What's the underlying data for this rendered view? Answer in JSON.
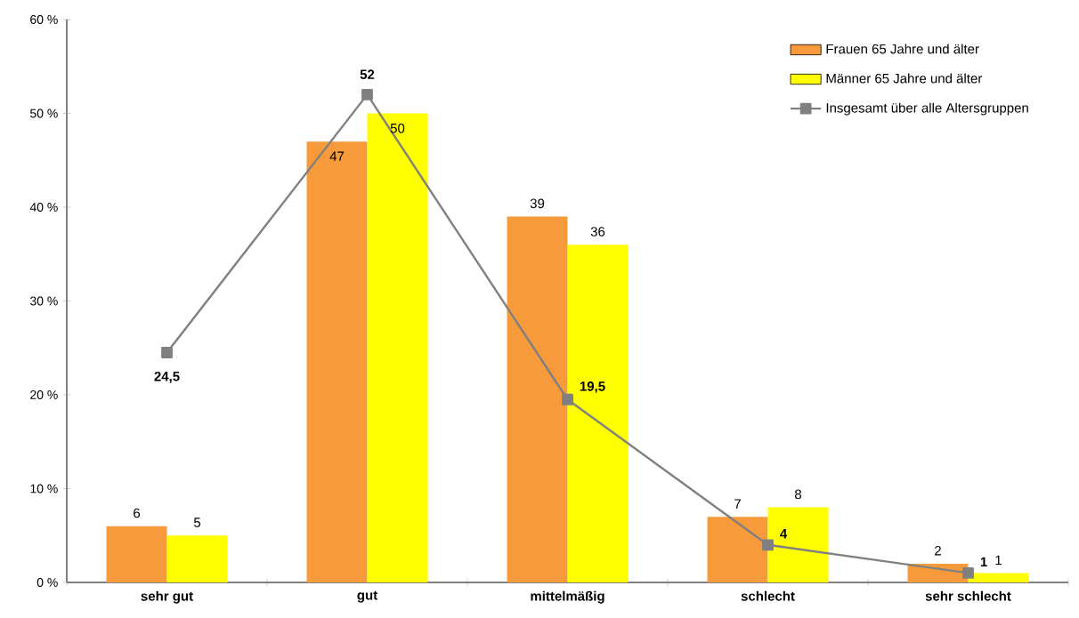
{
  "chart_data": {
    "type": "bar",
    "categories": [
      "sehr gut",
      "gut",
      "mittelmäßig",
      "schlecht",
      "sehr schlecht"
    ],
    "series": [
      {
        "name": "Frauen 65 Jahre und älter",
        "color": "#f79a3b",
        "values": [
          6,
          47,
          39,
          7,
          2
        ],
        "value_labels": [
          "6",
          "47",
          "39",
          "7",
          "2"
        ]
      },
      {
        "name": "Männer 65 Jahre und älter",
        "color": "#ffff00",
        "values": [
          5,
          50,
          36,
          8,
          1
        ],
        "value_labels": [
          "5",
          "50",
          "36",
          "8",
          "1"
        ]
      },
      {
        "name": "Insgesamt über alle Altersgruppen",
        "type": "line",
        "color": "#808080",
        "marker": "square",
        "values": [
          24.5,
          52,
          19.5,
          4,
          1
        ],
        "value_labels": [
          "24,5",
          "52",
          "19,5",
          "4",
          "1"
        ]
      }
    ],
    "ylim": [
      0,
      60
    ],
    "yticks": [
      {
        "value": 0,
        "label": "0 %"
      },
      {
        "value": 10,
        "label": "10 %"
      },
      {
        "value": 20,
        "label": "20 %"
      },
      {
        "value": 30,
        "label": "30 %"
      },
      {
        "value": 40,
        "label": "40 %"
      },
      {
        "value": 50,
        "label": "50 %"
      },
      {
        "value": 60,
        "label": "60 %"
      }
    ],
    "legend": "top right",
    "grid": false
  }
}
